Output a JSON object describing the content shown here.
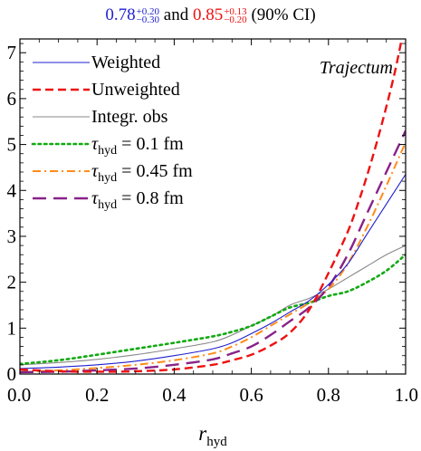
{
  "header": {
    "weighted_value": "0.78",
    "weighted_upper": "+0.20",
    "weighted_lower": "−0.30",
    "joiner": "and",
    "unweighted_value": "0.85",
    "unweighted_upper": "+0.13",
    "unweighted_lower": "−0.20",
    "ci_note": "(90% CI)"
  },
  "chart_data": {
    "type": "line",
    "annotation": "Trajectum",
    "xlabel": "r_hyd",
    "xlabel_main": "r",
    "xlabel_sub": "hyd",
    "ylabel": "",
    "xlim": [
      0.0,
      1.0
    ],
    "ylim": [
      0,
      7.3
    ],
    "xticks": [
      "0.0",
      "0.2",
      "0.4",
      "0.6",
      "0.8",
      "1.0"
    ],
    "yticks": [
      "0",
      "1",
      "2",
      "3",
      "4",
      "5",
      "6",
      "7"
    ],
    "legend_position": "top-left",
    "series": [
      {
        "name": "Weighted",
        "color": "#1f1fd0",
        "style": "solid",
        "x": [
          0.0,
          0.1,
          0.2,
          0.3,
          0.4,
          0.5,
          0.55,
          0.6,
          0.65,
          0.7,
          0.75,
          0.8,
          0.85,
          0.9,
          0.95,
          1.0
        ],
        "y": [
          0.12,
          0.15,
          0.2,
          0.28,
          0.4,
          0.55,
          0.68,
          0.88,
          1.1,
          1.35,
          1.6,
          1.95,
          2.4,
          3.05,
          3.7,
          4.35
        ]
      },
      {
        "name": "Unweighted",
        "color": "#ee1111",
        "style": "dashed",
        "x": [
          0.0,
          0.1,
          0.2,
          0.3,
          0.4,
          0.5,
          0.55,
          0.6,
          0.65,
          0.7,
          0.75,
          0.8,
          0.85,
          0.88,
          0.91,
          0.94,
          0.97,
          0.99
        ],
        "y": [
          0.1,
          0.06,
          0.05,
          0.06,
          0.1,
          0.2,
          0.3,
          0.42,
          0.62,
          0.9,
          1.4,
          2.2,
          3.1,
          3.8,
          4.6,
          5.5,
          6.5,
          7.3
        ]
      },
      {
        "name": "Integr. obs",
        "color": "#888888",
        "style": "solid",
        "x": [
          0.0,
          0.1,
          0.2,
          0.3,
          0.4,
          0.5,
          0.55,
          0.6,
          0.65,
          0.7,
          0.75,
          0.8,
          0.85,
          0.9,
          0.95,
          1.0
        ],
        "y": [
          0.2,
          0.25,
          0.32,
          0.42,
          0.55,
          0.7,
          0.85,
          1.05,
          1.25,
          1.5,
          1.65,
          1.85,
          2.1,
          2.35,
          2.6,
          2.8
        ]
      },
      {
        "name": "τ_hyd = 0.1 fm",
        "label_main": "τ",
        "label_sub": "hyd",
        "label_rest": " = 0.1 fm",
        "color": "#11aa11",
        "style": "dotted",
        "x": [
          0.0,
          0.1,
          0.2,
          0.3,
          0.4,
          0.5,
          0.55,
          0.6,
          0.65,
          0.7,
          0.75,
          0.8,
          0.85,
          0.9,
          0.95,
          1.0
        ],
        "y": [
          0.22,
          0.3,
          0.42,
          0.55,
          0.68,
          0.82,
          0.92,
          1.05,
          1.25,
          1.45,
          1.55,
          1.7,
          1.8,
          2.0,
          2.25,
          2.6
        ]
      },
      {
        "name": "τ_hyd = 0.45 fm",
        "label_main": "τ",
        "label_sub": "hyd",
        "label_rest": " = 0.45 fm",
        "color": "#ff8c1a",
        "style": "dashdot",
        "x": [
          0.0,
          0.1,
          0.2,
          0.3,
          0.4,
          0.5,
          0.55,
          0.6,
          0.65,
          0.7,
          0.75,
          0.8,
          0.85,
          0.9,
          0.95,
          1.0
        ],
        "y": [
          0.05,
          0.08,
          0.13,
          0.2,
          0.3,
          0.45,
          0.6,
          0.8,
          1.05,
          1.3,
          1.55,
          1.85,
          2.4,
          3.2,
          4.1,
          5.05
        ]
      },
      {
        "name": "τ_hyd = 0.8 fm",
        "label_main": "τ",
        "label_sub": "hyd",
        "label_rest": " = 0.8 fm",
        "color": "#882288",
        "style": "longdash",
        "x": [
          0.0,
          0.1,
          0.2,
          0.3,
          0.4,
          0.5,
          0.55,
          0.6,
          0.65,
          0.7,
          0.75,
          0.8,
          0.85,
          0.9,
          0.95,
          1.0
        ],
        "y": [
          0.04,
          0.05,
          0.08,
          0.12,
          0.2,
          0.32,
          0.45,
          0.6,
          0.85,
          1.15,
          1.45,
          1.9,
          2.6,
          3.5,
          4.4,
          5.3
        ]
      }
    ]
  }
}
